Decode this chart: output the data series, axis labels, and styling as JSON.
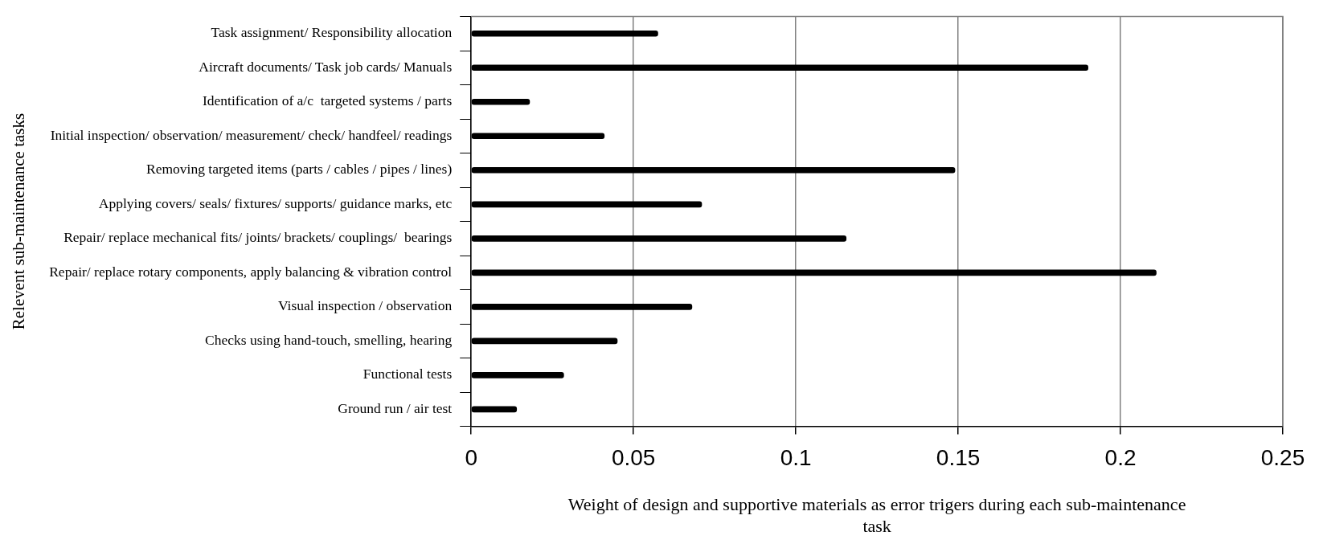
{
  "chart_data": {
    "type": "bar",
    "orientation": "horizontal",
    "categories": [
      "Task assignment/ Responsibility allocation",
      "Aircraft documents/ Task job cards/ Manuals",
      "Identification of a/c  targeted systems / parts",
      "Initial inspection/ observation/ measurement/ check/ handfeel/ readings",
      "Removing targeted items (parts / cables / pipes / lines)",
      "Applying covers/ seals/ fixtures/ supports/ guidance marks, etc",
      "Repair/ replace mechanical fits/ joints/ brackets/ couplings/  bearings",
      "Repair/ replace rotary components, apply balancing & vibration control",
      "Visual inspection / observation",
      "Checks using hand-touch, smelling, hearing",
      "Functional tests",
      "Ground run / air test"
    ],
    "values": [
      0.0575,
      0.19,
      0.018,
      0.041,
      0.149,
      0.071,
      0.1155,
      0.211,
      0.068,
      0.045,
      0.0285,
      0.014
    ],
    "color": "#000000",
    "xlim": [
      0,
      0.25
    ],
    "xticks": [
      0,
      0.05,
      0.1,
      0.15,
      0.2,
      0.25
    ],
    "xlabel": "Weight of design and supportive materials as error trigers during each sub-maintenance task",
    "ylabel": "Relevent sub-maintenance tasks",
    "grid": "x",
    "legend": false
  }
}
